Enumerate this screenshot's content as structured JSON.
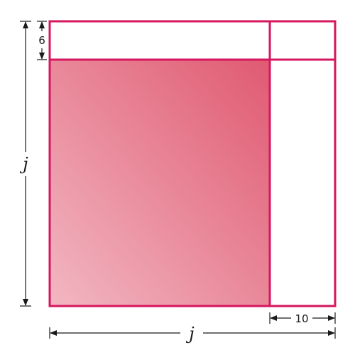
{
  "labels": {
    "top_strip_height": "6",
    "right_strip_width": "10",
    "left_side": "j",
    "bottom_side": "j"
  },
  "colors": {
    "outline": "#d6165e",
    "shaded_dark": "#e05a72",
    "shaded_light": "#f2b7c2",
    "dimension_line": "#1a1a1a"
  }
}
